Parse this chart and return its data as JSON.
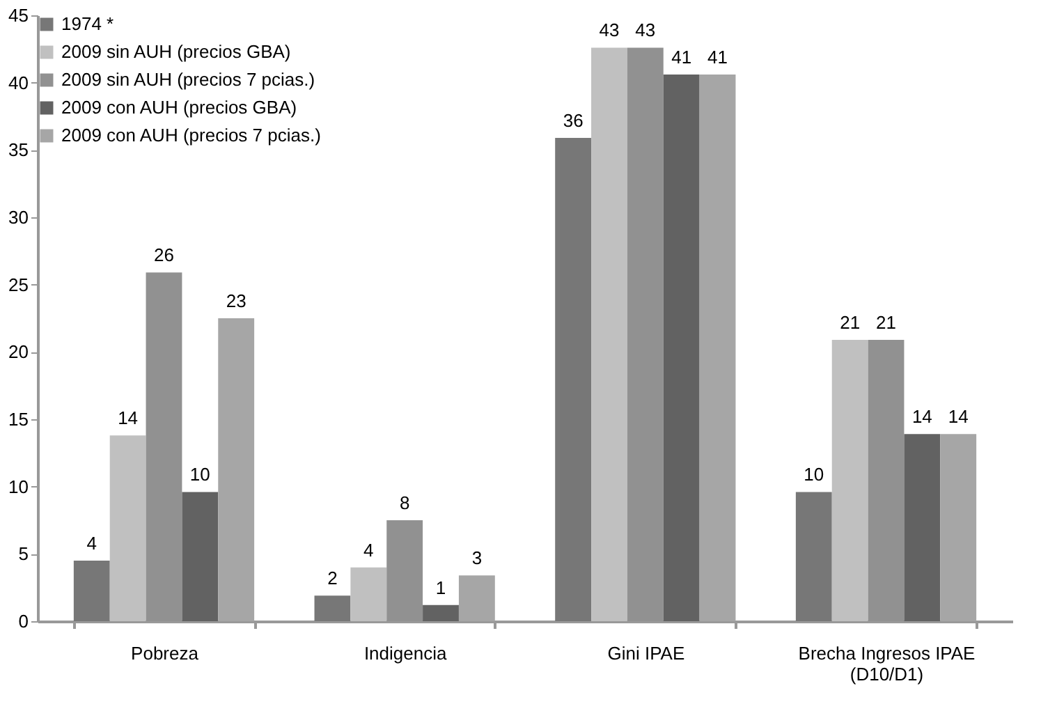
{
  "chart_data": {
    "type": "bar",
    "categories": [
      "Pobreza",
      "Indigencia",
      "Gini IPAE",
      "Brecha Ingresos IPAE\n(D10/D1)"
    ],
    "series": [
      {
        "name": "1974 *",
        "color": "#777777",
        "values": [
          4.5,
          1.9,
          35.9,
          9.6
        ],
        "value_labels": [
          "4",
          "2",
          "36",
          "10"
        ]
      },
      {
        "name": "2009 sin AUH (precios GBA)",
        "color": "#c0c0c0",
        "values": [
          13.8,
          4.0,
          42.6,
          20.9
        ],
        "value_labels": [
          "14",
          "4",
          "43",
          "21"
        ]
      },
      {
        "name": "2009 sin AUH (precios 7 pcias.)",
        "color": "#919191",
        "values": [
          25.9,
          7.5,
          42.6,
          20.9
        ],
        "value_labels": [
          "26",
          "8",
          "43",
          "21"
        ]
      },
      {
        "name": "2009 con AUH (precios GBA)",
        "color": "#626262",
        "values": [
          9.6,
          1.2,
          40.6,
          13.9
        ],
        "value_labels": [
          "10",
          "1",
          "41",
          "14"
        ]
      },
      {
        "name": "2009 con AUH (precios 7 pcias.)",
        "color": "#a6a6a6",
        "values": [
          22.5,
          3.4,
          40.6,
          13.9
        ],
        "value_labels": [
          "23",
          "3",
          "41",
          "14"
        ]
      }
    ],
    "ylim": [
      0,
      45
    ],
    "yticks": [
      0,
      5,
      10,
      15,
      20,
      25,
      30,
      35,
      40,
      45
    ],
    "grid": false,
    "legend": "top left"
  }
}
